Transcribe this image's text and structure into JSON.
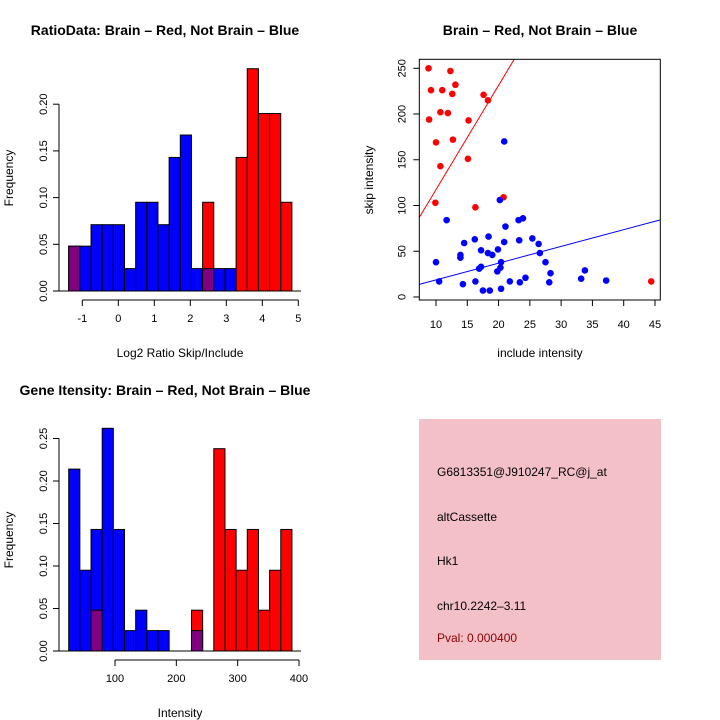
{
  "chart_data": [
    {
      "type": "bar",
      "title": "RatioData: Brain – Red, Not Brain – Blue",
      "xlabel": "Log2 Ratio Skip/Include",
      "ylabel": "Frequency",
      "bin_start": -1.378,
      "bin_width": 0.31,
      "xticks": [
        "-1",
        "0",
        "1",
        "2",
        "3",
        "4",
        "5"
      ],
      "xtick_values": [
        -1,
        0,
        1,
        2,
        3,
        4,
        5
      ],
      "yticks": [
        "0.00",
        "0.05",
        "0.10",
        "0.15",
        "0.20"
      ],
      "ytick_values": [
        0,
        0.05,
        0.1,
        0.15,
        0.2
      ],
      "xlim": [
        -1.4,
        5.1
      ],
      "ylim": [
        0,
        0.24
      ],
      "series": [
        {
          "name": "Not Brain",
          "color": "#0000ff",
          "values": [
            0.048,
            0.048,
            0.071,
            0.071,
            0.071,
            0.024,
            0.095,
            0.095,
            0.071,
            0.143,
            0.167,
            0.024,
            0.024,
            0.024,
            0.024,
            0,
            0,
            0,
            0,
            0
          ]
        },
        {
          "name": "Brain",
          "color": "#ff0000",
          "values": [
            0.048,
            0,
            0,
            0,
            0,
            0,
            0,
            0,
            0,
            0,
            0,
            0,
            0.095,
            0,
            0,
            0.143,
            0.238,
            0.19,
            0.19,
            0.095
          ]
        }
      ],
      "overlap_color": "#800080"
    },
    {
      "type": "scatter",
      "title": "Brain – Red, Not Brain – Blue",
      "xlabel": "include intensity",
      "ylabel": "skip intensity",
      "xlim": [
        7.33,
        45.85
      ],
      "ylim": [
        -3.3,
        259.8
      ],
      "xticks": [
        "10",
        "15",
        "20",
        "25",
        "30",
        "35",
        "40",
        "45"
      ],
      "xtick_values": [
        10,
        15,
        20,
        25,
        30,
        35,
        40,
        45
      ],
      "yticks": [
        "0",
        "50",
        "100",
        "150",
        "200",
        "250"
      ],
      "ytick_values": [
        0,
        50,
        100,
        150,
        200,
        250
      ],
      "series": [
        {
          "name": "Brain",
          "color": "#ff0000",
          "fit": {
            "slope": 11.4,
            "intercept": 3.3
          },
          "points": [
            [
              8.8,
              250
            ],
            [
              9.2,
              226
            ],
            [
              8.9,
              194
            ],
            [
              10.0,
              169
            ],
            [
              10.7,
              143
            ],
            [
              9.9,
              103
            ],
            [
              11.0,
              226
            ],
            [
              10.7,
              202
            ],
            [
              11.9,
              201
            ],
            [
              12.3,
              247
            ],
            [
              12.6,
              222
            ],
            [
              13.1,
              232
            ],
            [
              12.7,
              172
            ],
            [
              15.2,
              193
            ],
            [
              15.1,
              151
            ],
            [
              16.3,
              98
            ],
            [
              17.6,
              221
            ],
            [
              18.3,
              215
            ],
            [
              20.8,
              109
            ],
            [
              44.4,
              17
            ]
          ]
        },
        {
          "name": "Not Brain",
          "color": "#0000ff",
          "fit": {
            "slope": 1.83,
            "intercept": 0.4
          },
          "points": [
            [
              20.9,
              170
            ],
            [
              20.2,
              106
            ],
            [
              11.7,
              84
            ],
            [
              10.0,
              38
            ],
            [
              10.5,
              17
            ],
            [
              14.5,
              59
            ],
            [
              13.9,
              46
            ],
            [
              13.9,
              43
            ],
            [
              14.3,
              14
            ],
            [
              16.2,
              63
            ],
            [
              16.3,
              17
            ],
            [
              17.2,
              51
            ],
            [
              16.9,
              31
            ],
            [
              17.2,
              33
            ],
            [
              17.5,
              7
            ],
            [
              18.4,
              66
            ],
            [
              18.3,
              48
            ],
            [
              19.0,
              46
            ],
            [
              18.6,
              7
            ],
            [
              19.9,
              52
            ],
            [
              20.4,
              38
            ],
            [
              20.3,
              32
            ],
            [
              19.8,
              28
            ],
            [
              20.4,
              9
            ],
            [
              20.9,
              60
            ],
            [
              21.1,
              77
            ],
            [
              21.8,
              17
            ],
            [
              23.2,
              84
            ],
            [
              23.9,
              86
            ],
            [
              23.3,
              62
            ],
            [
              23.4,
              16
            ],
            [
              24.3,
              21
            ],
            [
              25.4,
              64
            ],
            [
              26.4,
              58
            ],
            [
              26.6,
              48
            ],
            [
              27.5,
              38
            ],
            [
              28.3,
              26
            ],
            [
              28.1,
              16
            ],
            [
              33.2,
              20
            ],
            [
              33.8,
              29
            ],
            [
              37.2,
              18
            ]
          ]
        }
      ]
    },
    {
      "type": "bar",
      "title": "Gene Itensity: Brain – Red, Not Brain – Blue",
      "xlabel": "Intensity",
      "ylabel": "Frequency",
      "bin_start": 24.5,
      "bin_width": 18.2,
      "xticks": [
        "100",
        "200",
        "300",
        "400"
      ],
      "xtick_values": [
        100,
        200,
        300,
        400
      ],
      "yticks": [
        "0.00",
        "0.05",
        "0.10",
        "0.15",
        "0.20",
        "0.25"
      ],
      "ytick_values": [
        0,
        0.05,
        0.1,
        0.15,
        0.2,
        0.25
      ],
      "xlim": [
        24.5,
        400
      ],
      "ylim": [
        0,
        0.26
      ],
      "series": [
        {
          "name": "Not Brain",
          "color": "#0000ff",
          "values": [
            0.214,
            0.095,
            0.143,
            0.262,
            0.143,
            0.024,
            0.048,
            0.024,
            0.024,
            0,
            0,
            0.024,
            0,
            0,
            0,
            0,
            0,
            0,
            0,
            0
          ]
        },
        {
          "name": "Brain",
          "color": "#ff0000",
          "values": [
            0,
            0,
            0.048,
            0,
            0,
            0,
            0,
            0,
            0,
            0,
            0,
            0.048,
            0,
            0.238,
            0.143,
            0.095,
            0.143,
            0.048,
            0.095,
            0.143
          ]
        }
      ],
      "overlap_color": "#800080"
    }
  ],
  "info": {
    "probe": "G6813351@J910247_RC@j_at",
    "event": "altCassette",
    "gene": "Hk1",
    "location": "chr10.2242–3.11",
    "pval": "Pval: 0.000400",
    "bg_color": "#f4c0c8",
    "pval_color": "#8b0000"
  }
}
